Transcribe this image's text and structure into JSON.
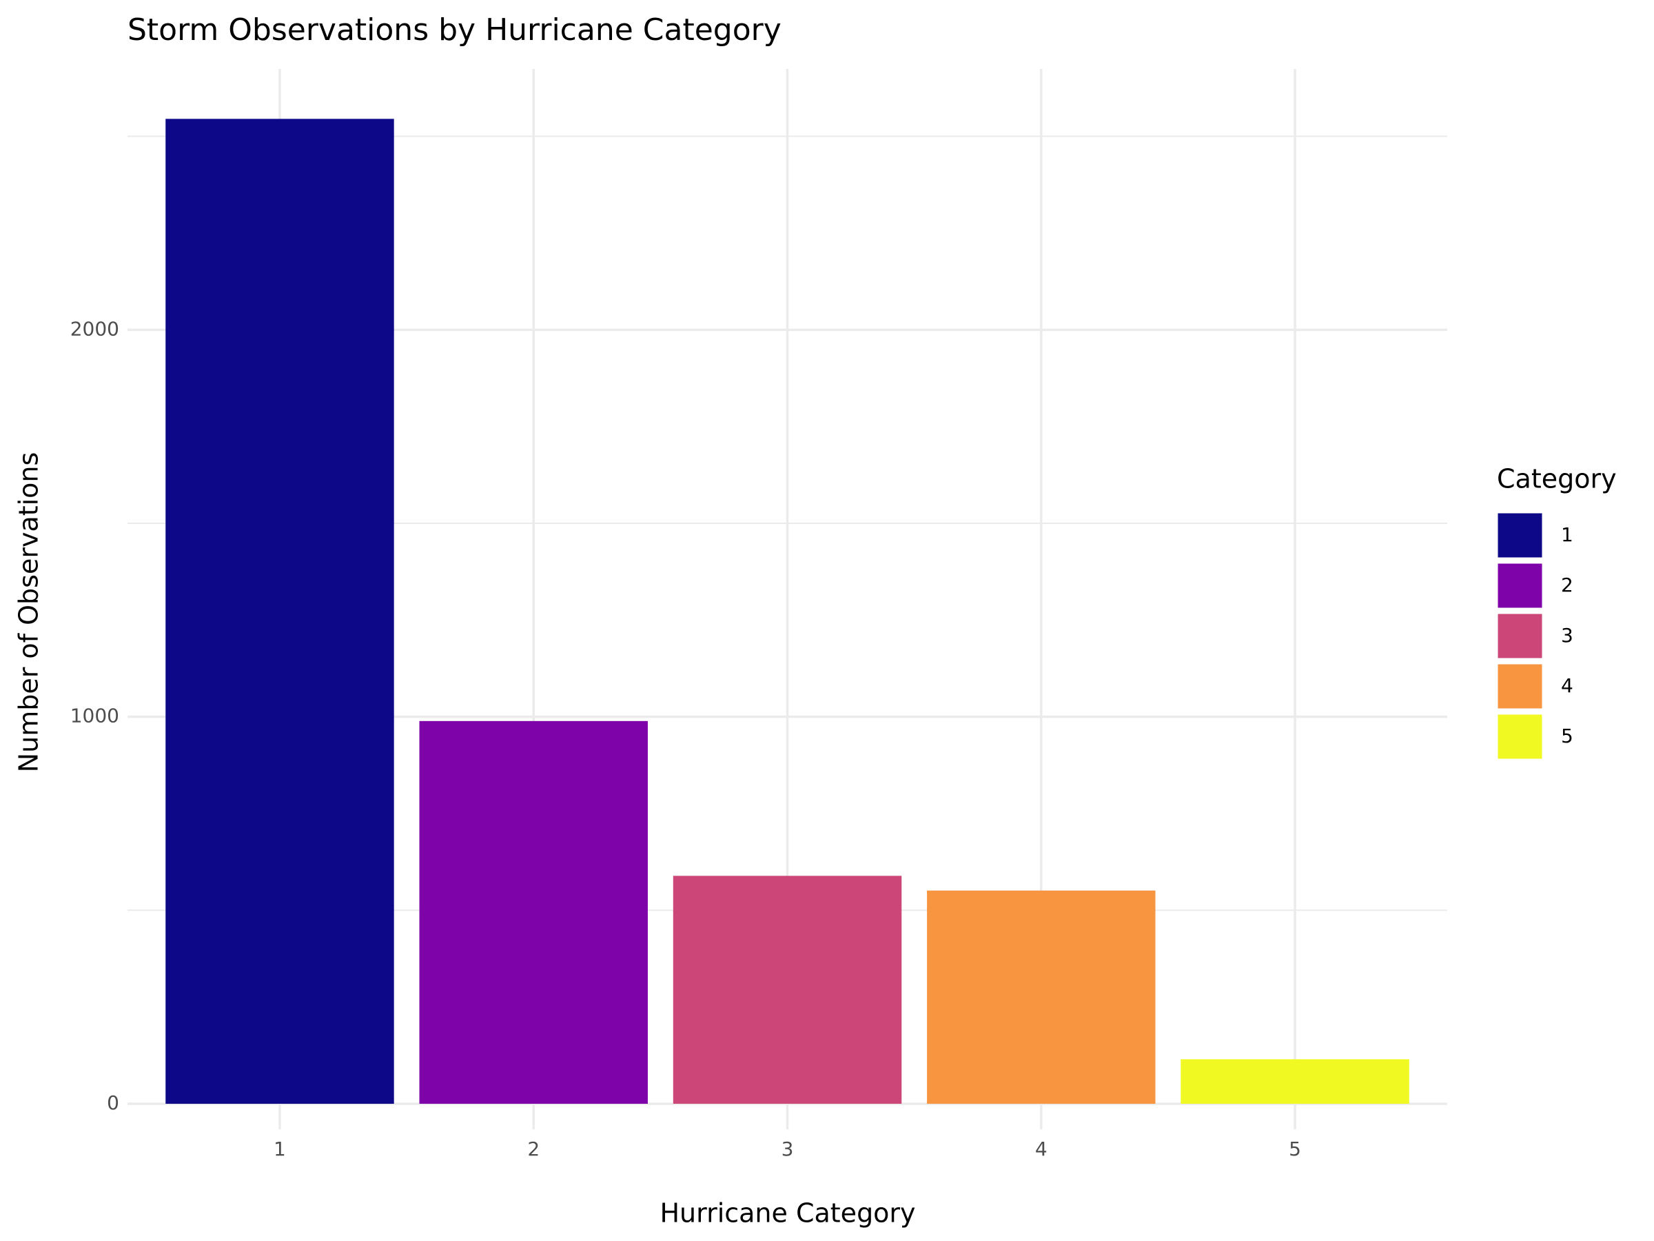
{
  "chart_data": {
    "type": "bar",
    "title": "Storm Observations by Hurricane Category",
    "x_label": "Hurricane Category",
    "y_label": "Number of Observations",
    "legend_title": "Category",
    "categories": [
      "1",
      "2",
      "3",
      "4",
      "5"
    ],
    "values": [
      2545,
      989,
      589,
      551,
      115
    ],
    "colors": [
      "#0d0887",
      "#7e03a8",
      "#cc4778",
      "#f89540",
      "#f0f921"
    ],
    "ylim": [
      -66,
      2674
    ],
    "yticks": [
      0,
      1000,
      2000
    ],
    "minor_yticks": [
      500,
      1500,
      2500
    ],
    "grid": true,
    "legend_position": "right"
  }
}
